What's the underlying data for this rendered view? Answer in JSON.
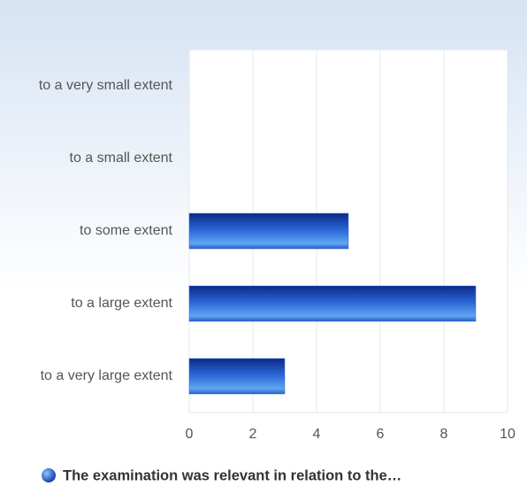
{
  "chart_data": {
    "type": "bar",
    "orientation": "horizontal",
    "categories": [
      "to a very small extent",
      "to a small extent",
      "to some extent",
      "to a large extent",
      "to a very large extent"
    ],
    "series": [
      {
        "name": "The examination was relevant in relation to the…",
        "color": "#2f6ad8",
        "values": [
          0,
          0,
          5,
          9,
          3
        ]
      }
    ],
    "xlim": [
      0,
      10
    ],
    "xticks": [
      0,
      2,
      4,
      6,
      8,
      10
    ],
    "grid": true,
    "legend": "bottom"
  }
}
